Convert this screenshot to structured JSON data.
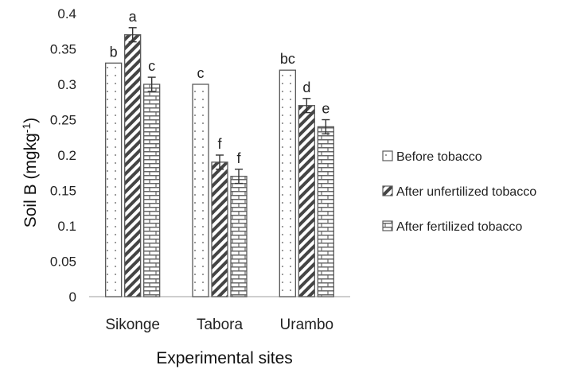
{
  "chart_data": {
    "type": "bar",
    "title": "",
    "xlabel": "Experimental sites",
    "ylabel": "Soil B (mgkg",
    "ylabel_superscript": "-1",
    "ylabel_close": ")",
    "ylim": [
      0,
      0.4
    ],
    "yticks": [
      "0",
      "0.05",
      "0.1",
      "0.15",
      "0.2",
      "0.25",
      "0.3",
      "0.35",
      "0.4"
    ],
    "ytick_values": [
      0,
      0.05,
      0.1,
      0.15,
      0.2,
      0.25,
      0.3,
      0.35,
      0.4
    ],
    "grid": false,
    "legend_position": "right",
    "categories": [
      "Sikonge",
      "Tabora",
      "Urambo"
    ],
    "series": [
      {
        "name": "Before tobacco",
        "pattern": "dots",
        "values": [
          0.33,
          0.3,
          0.32
        ],
        "errors": [
          0,
          0,
          0
        ],
        "letters": [
          "b",
          "c",
          "bc"
        ]
      },
      {
        "name": "After unfertilized tobacco",
        "pattern": "diagonal",
        "values": [
          0.37,
          0.19,
          0.27
        ],
        "errors": [
          0.01,
          0.01,
          0.01
        ],
        "letters": [
          "a",
          "f",
          "d"
        ]
      },
      {
        "name": "After fertilized tobacco",
        "pattern": "bricks",
        "values": [
          0.3,
          0.17,
          0.24
        ],
        "errors": [
          0.01,
          0.01,
          0.01
        ],
        "letters": [
          "c",
          "f",
          "e"
        ]
      }
    ]
  }
}
